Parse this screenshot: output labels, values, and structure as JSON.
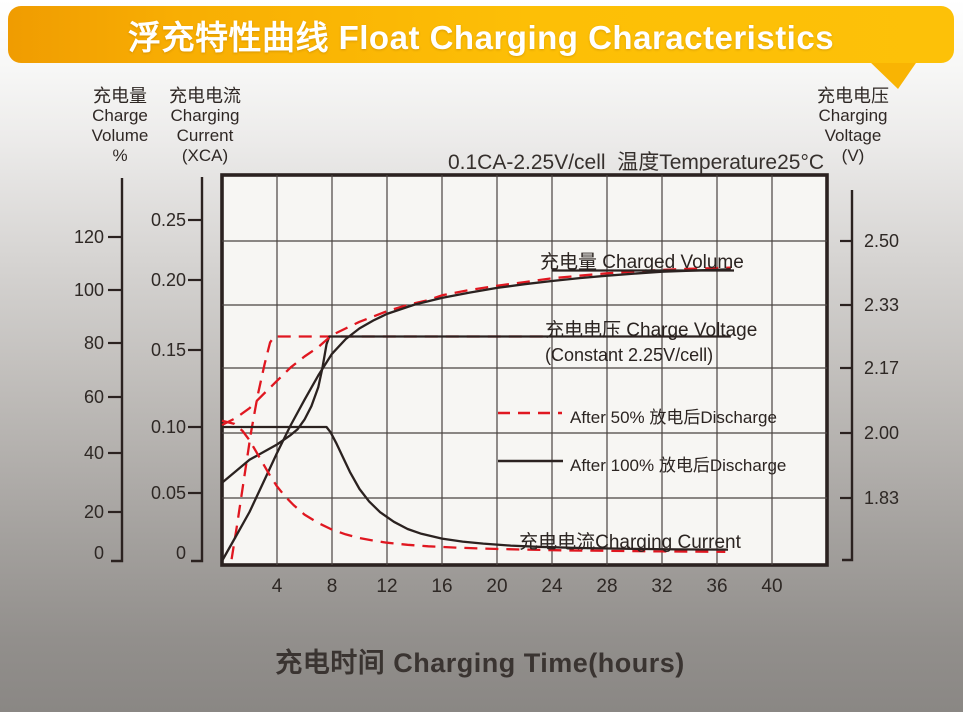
{
  "banner": {
    "title": "浮充特性曲线 Float Charging Characteristics",
    "color_start": "#f09c01",
    "color_end": "#fdc108"
  },
  "chart_data": {
    "type": "line",
    "title": "浮充特性曲线 Float Charging Characteristics",
    "condition": "0.1CA-2.25V/cell  温度Temperature25°C",
    "xlabel": "充电时间 Charging Time(hours)",
    "x_axis": {
      "range": [
        0,
        44
      ],
      "grid_step_hours": 4,
      "ticks": [
        {
          "v": 4,
          "label": "4"
        },
        {
          "v": 8,
          "label": "8"
        },
        {
          "v": 12,
          "label": "12"
        },
        {
          "v": 16,
          "label": "16"
        },
        {
          "v": 20,
          "label": "20"
        },
        {
          "v": 24,
          "label": "24"
        },
        {
          "v": 28,
          "label": "28"
        },
        {
          "v": 32,
          "label": "32"
        },
        {
          "v": 36,
          "label": "36"
        },
        {
          "v": 40,
          "label": "40"
        }
      ]
    },
    "axes": {
      "volume": {
        "title_lines": [
          "充电量",
          "Charge",
          "Volume",
          "%"
        ],
        "range": [
          0,
          120
        ],
        "ticks": [
          {
            "v": 0,
            "label": "0"
          },
          {
            "v": 20,
            "label": "20"
          },
          {
            "v": 40,
            "label": "40"
          },
          {
            "v": 60,
            "label": "60"
          },
          {
            "v": 80,
            "label": "80"
          },
          {
            "v": 100,
            "label": "100"
          },
          {
            "v": 120,
            "label": "120"
          }
        ]
      },
      "current": {
        "title_lines": [
          "充电电流",
          "Charging",
          "Current",
          "(XCA)"
        ],
        "range": [
          0,
          0.25
        ],
        "ticks": [
          {
            "v": 0,
            "label": "0"
          },
          {
            "v": 0.05,
            "label": "0.05"
          },
          {
            "v": 0.1,
            "label": "0.10"
          },
          {
            "v": 0.15,
            "label": "0.15"
          },
          {
            "v": 0.2,
            "label": "0.20"
          },
          {
            "v": 0.25,
            "label": "0.25"
          }
        ]
      },
      "voltage": {
        "title_lines": [
          "充电电压",
          "Charging",
          "Voltage",
          "(V)"
        ],
        "range": [
          1.66,
          2.67
        ],
        "ticks": [
          {
            "v": 1.83,
            "label": "1.83"
          },
          {
            "v": 2.0,
            "label": "2.00"
          },
          {
            "v": 2.17,
            "label": "2.17"
          },
          {
            "v": 2.33,
            "label": "2.33"
          },
          {
            "v": 2.5,
            "label": "2.50"
          }
        ]
      }
    },
    "grid": true,
    "colors": {
      "red": "#e01720",
      "ink": "#2b2220"
    },
    "curve_labels": {
      "charged_volume": "充电量 Charged Volume",
      "charge_voltage_1": "充电电压 Charge Voltage",
      "charge_voltage_2": "(Constant 2.25V/cell)",
      "charging_current": "充电电流Charging Current"
    },
    "legend": [
      {
        "label": "After 50% 放电后Discharge",
        "style": "dashed",
        "color": "#e01720"
      },
      {
        "label": "After 100% 放电后Discharge",
        "style": "solid",
        "color": "#2b2220"
      }
    ],
    "series": [
      {
        "name": "charge_voltage_after_50_discharge",
        "axis": "voltage",
        "style": "dashed",
        "color": "#e01720",
        "points": [
          [
            0.7,
            1.67
          ],
          [
            1.1,
            1.76
          ],
          [
            1.6,
            1.88
          ],
          [
            2.1,
            2.0
          ],
          [
            2.6,
            2.1
          ],
          [
            3.1,
            2.18
          ],
          [
            3.5,
            2.235
          ],
          [
            3.8,
            2.25
          ],
          [
            23.5,
            2.25
          ]
        ]
      },
      {
        "name": "charge_voltage_after_100_discharge",
        "axis": "voltage",
        "style": "solid",
        "color": "#2b2220",
        "points": [
          [
            0,
            1.87
          ],
          [
            1,
            1.9
          ],
          [
            2,
            1.93
          ],
          [
            3,
            1.95
          ],
          [
            4,
            1.97
          ],
          [
            5,
            1.995
          ],
          [
            5.5,
            2.01
          ],
          [
            6,
            2.035
          ],
          [
            6.5,
            2.07
          ],
          [
            7,
            2.12
          ],
          [
            7.3,
            2.17
          ],
          [
            7.6,
            2.23
          ],
          [
            7.8,
            2.25
          ],
          [
            37,
            2.25
          ]
        ]
      },
      {
        "name": "charged_volume_after_50_discharge",
        "axis": "volume",
        "style": "dashed",
        "color": "#e01720",
        "points": [
          [
            0,
            50
          ],
          [
            1,
            52.5
          ],
          [
            2,
            56
          ],
          [
            3,
            61
          ],
          [
            4,
            66
          ],
          [
            5,
            71
          ],
          [
            6,
            75
          ],
          [
            7,
            78.5
          ],
          [
            8,
            83
          ],
          [
            9,
            85.5
          ],
          [
            10,
            88
          ],
          [
            11,
            90
          ],
          [
            12,
            92
          ],
          [
            13,
            93.6
          ],
          [
            14,
            95
          ],
          [
            15,
            96.2
          ],
          [
            16,
            98
          ],
          [
            17,
            99
          ],
          [
            18,
            100
          ],
          [
            19,
            100.8
          ],
          [
            20,
            101.6
          ],
          [
            22,
            103
          ],
          [
            24,
            104.4
          ],
          [
            26,
            105.4
          ],
          [
            28,
            106.3
          ],
          [
            30,
            107
          ],
          [
            32,
            107.6
          ],
          [
            34,
            108
          ],
          [
            37,
            108.4
          ]
        ]
      },
      {
        "name": "charged_volume_after_100_discharge",
        "axis": "volume",
        "style": "solid",
        "color": "#2b2220",
        "points": [
          [
            0,
            0
          ],
          [
            1,
            10
          ],
          [
            2,
            20
          ],
          [
            3,
            30
          ],
          [
            4,
            40
          ],
          [
            5,
            50
          ],
          [
            6,
            59
          ],
          [
            7,
            68
          ],
          [
            8,
            76
          ],
          [
            9,
            81.5
          ],
          [
            10,
            85.5
          ],
          [
            11,
            88.5
          ],
          [
            12,
            91
          ],
          [
            14,
            94.5
          ],
          [
            16,
            97
          ],
          [
            18,
            99
          ],
          [
            20,
            100.8
          ],
          [
            22,
            102.2
          ],
          [
            24,
            103.4
          ],
          [
            26,
            104.5
          ],
          [
            28,
            105.4
          ],
          [
            30,
            106.2
          ],
          [
            32,
            106.9
          ],
          [
            34,
            107.3
          ],
          [
            37,
            107.8
          ]
        ]
      },
      {
        "name": "charging_current_after_50_discharge",
        "axis": "current",
        "style": "dashed",
        "color": "#e01720",
        "points": [
          [
            0,
            0.104
          ],
          [
            0.9,
            0.102
          ],
          [
            1.5,
            0.097
          ],
          [
            2,
            0.09
          ],
          [
            2.5,
            0.081
          ],
          [
            3,
            0.072
          ],
          [
            3.5,
            0.063
          ],
          [
            4,
            0.055
          ],
          [
            4.6,
            0.047
          ],
          [
            5.2,
            0.04
          ],
          [
            6,
            0.032
          ],
          [
            7,
            0.025
          ],
          [
            8,
            0.0195
          ],
          [
            9,
            0.0155
          ],
          [
            10,
            0.0125
          ],
          [
            11,
            0.0103
          ],
          [
            12,
            0.0086
          ],
          [
            13.5,
            0.0068
          ],
          [
            15,
            0.0056
          ],
          [
            17,
            0.0045
          ],
          [
            19,
            0.0037
          ],
          [
            22,
            0.0028
          ],
          [
            25,
            0.0022
          ],
          [
            28,
            0.0018
          ],
          [
            32,
            0.0013
          ],
          [
            36.6,
            0.001
          ]
        ]
      },
      {
        "name": "charging_current_after_100_discharge",
        "axis": "current",
        "style": "solid",
        "color": "#2b2220",
        "points": [
          [
            0,
            0.1
          ],
          [
            7.6,
            0.1
          ],
          [
            7.9,
            0.096
          ],
          [
            8.3,
            0.088
          ],
          [
            8.8,
            0.077
          ],
          [
            9.3,
            0.066
          ],
          [
            10,
            0.053
          ],
          [
            10.7,
            0.043
          ],
          [
            11.5,
            0.034
          ],
          [
            12.5,
            0.026
          ],
          [
            13.5,
            0.02
          ],
          [
            14.5,
            0.016
          ],
          [
            16,
            0.012
          ],
          [
            17.5,
            0.0095
          ],
          [
            19,
            0.0078
          ],
          [
            21,
            0.0062
          ],
          [
            23,
            0.0052
          ],
          [
            26,
            0.0042
          ],
          [
            30,
            0.0034
          ],
          [
            33,
            0.003
          ],
          [
            36.8,
            0.0028
          ]
        ]
      }
    ]
  }
}
